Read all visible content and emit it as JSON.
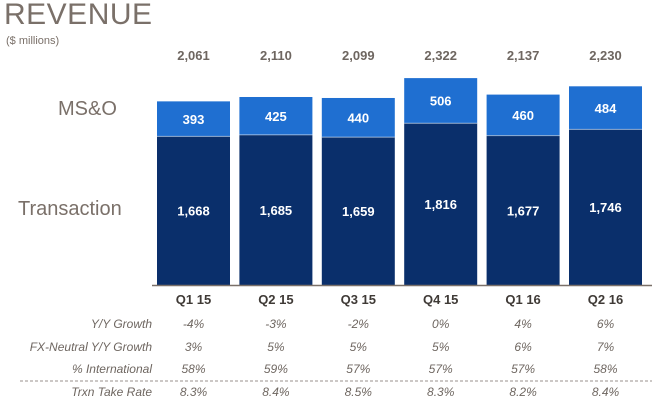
{
  "header": {
    "title": "REVENUE",
    "subtitle": "($ millions)"
  },
  "chart_data": {
    "type": "bar",
    "stacked": true,
    "title": "REVENUE",
    "subtitle": "($ millions)",
    "categories": [
      "Q1 15",
      "Q2 15",
      "Q3 15",
      "Q4 15",
      "Q1 16",
      "Q2 16"
    ],
    "series": [
      {
        "name": "Transaction",
        "values": [
          1668,
          1685,
          1659,
          1816,
          1677,
          1746
        ],
        "color": "#0a2f6b"
      },
      {
        "name": "MS&O",
        "values": [
          393,
          425,
          440,
          506,
          460,
          484
        ],
        "color": "#1f6fd1"
      }
    ],
    "totals": [
      "2,061",
      "2,110",
      "2,099",
      "2,322",
      "2,137",
      "2,230"
    ],
    "transaction_labels": [
      "1,668",
      "1,685",
      "1,659",
      "1,816",
      "1,677",
      "1,746"
    ],
    "mso_labels": [
      "393",
      "425",
      "440",
      "506",
      "460",
      "484"
    ],
    "ylim": [
      0,
      2400
    ],
    "legend_placement": "left",
    "table_rows": [
      {
        "label": "Y/Y Growth",
        "values": [
          "-4%",
          "-3%",
          "-2%",
          "0%",
          "4%",
          "6%"
        ]
      },
      {
        "label": "FX-Neutral Y/Y Growth",
        "values": [
          "3%",
          "5%",
          "5%",
          "5%",
          "6%",
          "7%"
        ]
      },
      {
        "label": "% International",
        "values": [
          "58%",
          "59%",
          "57%",
          "57%",
          "57%",
          "58%"
        ]
      },
      {
        "label": "Trxn Take Rate",
        "values": [
          "8.3%",
          "8.4%",
          "8.5%",
          "8.3%",
          "8.2%",
          "8.4%"
        ]
      }
    ]
  },
  "colors": {
    "transaction": "#0a2f6b",
    "mso": "#1f6fd1",
    "text_gray": "#7a7069",
    "axis": "#7a7069"
  }
}
